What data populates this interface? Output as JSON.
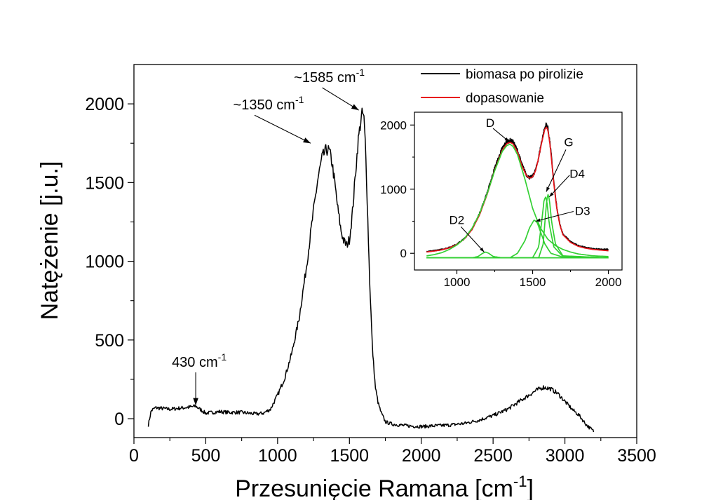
{
  "chart_data": [
    {
      "type": "line",
      "xlabel": "Przesunięcie Ramana [cm",
      "xlabel_sup": "-1",
      "xlabel_end": "]",
      "ylabel": "Natężenie [j.u.]",
      "xlim": [
        0,
        3500
      ],
      "ylim": [
        -120,
        2250
      ],
      "x_ticks": [
        "0",
        "500",
        "1000",
        "1500",
        "2000",
        "2500",
        "3000",
        "3500"
      ],
      "y_ticks": [
        "0",
        "500",
        "1000",
        "1500",
        "2000"
      ],
      "x_tick_values": [
        0,
        500,
        1000,
        1500,
        2000,
        2500,
        3000,
        3500
      ],
      "y_tick_values": [
        0,
        500,
        1000,
        1500,
        2000
      ],
      "series": [
        {
          "name": "biomasa po pirolizie",
          "color": "#000000",
          "x": [
            100,
            120,
            150,
            200,
            250,
            300,
            350,
            400,
            430,
            460,
            500,
            550,
            600,
            650,
            700,
            750,
            800,
            850,
            900,
            950,
            1000,
            1050,
            1100,
            1150,
            1200,
            1250,
            1280,
            1310,
            1340,
            1360,
            1380,
            1400,
            1420,
            1440,
            1460,
            1480,
            1500,
            1520,
            1540,
            1560,
            1580,
            1590,
            1600,
            1610,
            1620,
            1640,
            1660,
            1680,
            1700,
            1720,
            1750,
            1800,
            1900,
            2000,
            2100,
            2200,
            2300,
            2400,
            2500,
            2550,
            2600,
            2650,
            2700,
            2750,
            2800,
            2850,
            2900,
            2950,
            3000,
            3050,
            3100,
            3150,
            3200
          ],
          "y": [
            -40,
            50,
            70,
            65,
            60,
            65,
            70,
            75,
            80,
            60,
            35,
            40,
            45,
            40,
            40,
            40,
            35,
            30,
            35,
            60,
            150,
            260,
            420,
            640,
            960,
            1320,
            1520,
            1660,
            1710,
            1700,
            1620,
            1480,
            1330,
            1200,
            1130,
            1100,
            1140,
            1300,
            1530,
            1760,
            1900,
            1940,
            1920,
            1760,
            1500,
            900,
            450,
            200,
            100,
            40,
            -20,
            -35,
            -45,
            -50,
            -45,
            -40,
            -30,
            -10,
            20,
            40,
            60,
            90,
            120,
            150,
            180,
            200,
            190,
            160,
            110,
            60,
            20,
            -40,
            -80
          ]
        }
      ],
      "annotations": [
        {
          "text": "430 cm",
          "sup": "-1",
          "target_x": 430,
          "target_y": 85
        },
        {
          "text": "~1350 cm",
          "sup": "-1",
          "target_x": 1230,
          "target_y": 1750
        },
        {
          "text": "~1585 cm",
          "sup": "-1",
          "target_x": 1565,
          "target_y": 1960
        }
      ]
    },
    {
      "type": "line",
      "name": "inset",
      "xlim": [
        720,
        2090
      ],
      "ylim": [
        -260,
        2200
      ],
      "x_ticks": [
        "1000",
        "1500",
        "2000"
      ],
      "y_ticks": [
        "0",
        "1000",
        "2000"
      ],
      "x_tick_values": [
        1000,
        1500,
        2000
      ],
      "y_tick_values": [
        0,
        1000,
        2000
      ],
      "series": [
        {
          "name": "biomasa po pirolizie",
          "color": "#000000",
          "x": [
            800,
            850,
            900,
            950,
            1000,
            1050,
            1100,
            1150,
            1200,
            1250,
            1300,
            1330,
            1350,
            1370,
            1400,
            1430,
            1460,
            1480,
            1500,
            1520,
            1540,
            1560,
            1580,
            1590,
            1600,
            1610,
            1620,
            1640,
            1660,
            1680,
            1700,
            1750,
            1800,
            1850,
            1900,
            1950,
            2000
          ],
          "y": [
            30,
            40,
            60,
            90,
            140,
            230,
            380,
            620,
            940,
            1330,
            1640,
            1740,
            1760,
            1740,
            1600,
            1380,
            1220,
            1180,
            1200,
            1300,
            1500,
            1750,
            1950,
            2010,
            1960,
            1800,
            1600,
            1100,
            700,
            450,
            300,
            180,
            120,
            90,
            70,
            60,
            60
          ]
        },
        {
          "name": "dopasowanie",
          "color": "#e8141a",
          "x": [
            800,
            850,
            900,
            950,
            1000,
            1050,
            1100,
            1150,
            1200,
            1250,
            1300,
            1330,
            1350,
            1370,
            1400,
            1430,
            1460,
            1480,
            1500,
            1520,
            1540,
            1560,
            1580,
            1590,
            1600,
            1610,
            1620,
            1640,
            1660,
            1680,
            1700,
            1750,
            1800,
            1850,
            1900,
            1950,
            2000
          ],
          "y": [
            20,
            35,
            55,
            85,
            135,
            225,
            370,
            600,
            920,
            1300,
            1610,
            1710,
            1730,
            1710,
            1580,
            1360,
            1210,
            1170,
            1190,
            1290,
            1490,
            1730,
            1930,
            1970,
            1930,
            1780,
            1580,
            1080,
            690,
            440,
            290,
            170,
            110,
            80,
            60,
            50,
            40
          ]
        },
        {
          "name": "D",
          "color": "#33d033",
          "x": [
            800,
            850,
            900,
            950,
            1000,
            1050,
            1100,
            1150,
            1200,
            1250,
            1300,
            1330,
            1350,
            1370,
            1400,
            1450,
            1500,
            1550,
            1600,
            1650,
            1700,
            1750,
            1800,
            1900,
            2000
          ],
          "y": [
            -40,
            -20,
            10,
            60,
            130,
            230,
            390,
            620,
            930,
            1290,
            1590,
            1680,
            1700,
            1670,
            1540,
            1150,
            700,
            400,
            220,
            120,
            60,
            20,
            -10,
            -40,
            -50
          ]
        },
        {
          "name": "D2",
          "color": "#33d033",
          "x": [
            800,
            1100,
            1140,
            1170,
            1190,
            1210,
            1240,
            1300,
            2000
          ],
          "y": [
            -70,
            -70,
            -50,
            0,
            20,
            0,
            -50,
            -70,
            -70
          ]
        },
        {
          "name": "D3",
          "color": "#33d033",
          "x": [
            800,
            1350,
            1400,
            1450,
            1480,
            1510,
            1530,
            1550,
            1580,
            1620,
            1700,
            2000
          ],
          "y": [
            -70,
            -70,
            0,
            200,
            400,
            520,
            480,
            350,
            150,
            0,
            -60,
            -70
          ]
        },
        {
          "name": "G",
          "color": "#33d033",
          "x": [
            800,
            1500,
            1540,
            1560,
            1575,
            1585,
            1595,
            1610,
            1640,
            1700,
            2000
          ],
          "y": [
            -70,
            -70,
            100,
            500,
            820,
            880,
            800,
            450,
            100,
            -50,
            -70
          ]
        },
        {
          "name": "D4",
          "color": "#33d033",
          "x": [
            800,
            1540,
            1570,
            1590,
            1600,
            1610,
            1625,
            1650,
            1700,
            2000
          ],
          "y": [
            -70,
            -70,
            150,
            750,
            930,
            850,
            500,
            150,
            -40,
            -70
          ]
        }
      ],
      "annotations": [
        {
          "text": "D",
          "target_x": 1345,
          "target_y": 1740
        },
        {
          "text": "D2",
          "target_x": 1180,
          "target_y": 20
        },
        {
          "text": "G",
          "target_x": 1590,
          "target_y": 960
        },
        {
          "text": "D4",
          "target_x": 1610,
          "target_y": 880
        },
        {
          "text": "D3",
          "target_x": 1520,
          "target_y": 500
        }
      ]
    }
  ],
  "legend": [
    {
      "label": "biomasa po pirolizie",
      "color": "#000000"
    },
    {
      "label": "dopasowanie",
      "color": "#e8141a"
    }
  ]
}
